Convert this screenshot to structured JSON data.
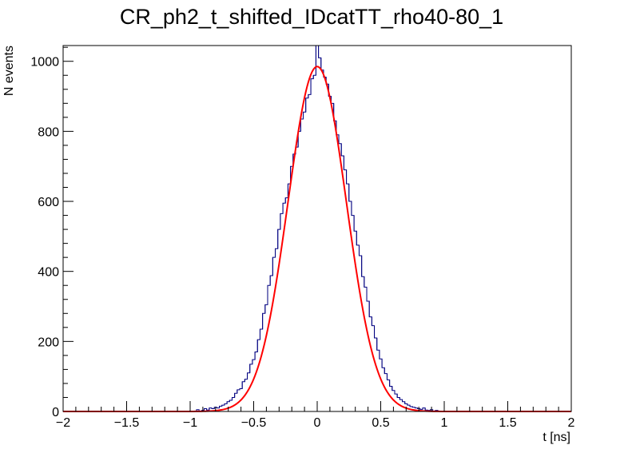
{
  "chart_data": {
    "type": "histogram",
    "title": "CR_ph2_t_shifted_IDcatTT_rho40-80_1",
    "xlabel": "t [ns]",
    "ylabel": "N events",
    "xlim": [
      -2,
      2
    ],
    "ylim": [
      0,
      1045
    ],
    "x_ticks": [
      "−2",
      "−1.5",
      "−1",
      "−0.5",
      "0",
      "0.5",
      "1",
      "1.5",
      "2"
    ],
    "y_ticks": [
      "0",
      "200",
      "400",
      "600",
      "800",
      "1000"
    ],
    "grid": false,
    "legend": "none",
    "series": [
      {
        "kind": "histogram",
        "color": "#000080",
        "bin_width": 0.02,
        "bins": [
          {
            "x": -0.94,
            "y": 5
          },
          {
            "x": -0.9,
            "y": 3
          },
          {
            "x": -0.88,
            "y": 8
          },
          {
            "x": -0.86,
            "y": 4
          },
          {
            "x": -0.84,
            "y": 10
          },
          {
            "x": -0.82,
            "y": 8
          },
          {
            "x": -0.8,
            "y": 12
          },
          {
            "x": -0.78,
            "y": 10
          },
          {
            "x": -0.76,
            "y": 15
          },
          {
            "x": -0.74,
            "y": 18
          },
          {
            "x": -0.72,
            "y": 22
          },
          {
            "x": -0.7,
            "y": 28
          },
          {
            "x": -0.68,
            "y": 32
          },
          {
            "x": -0.66,
            "y": 40
          },
          {
            "x": -0.64,
            "y": 52
          },
          {
            "x": -0.62,
            "y": 62
          },
          {
            "x": -0.6,
            "y": 65
          },
          {
            "x": -0.58,
            "y": 85
          },
          {
            "x": -0.56,
            "y": 92
          },
          {
            "x": -0.54,
            "y": 110
          },
          {
            "x": -0.52,
            "y": 135
          },
          {
            "x": -0.5,
            "y": 148
          },
          {
            "x": -0.48,
            "y": 170
          },
          {
            "x": -0.46,
            "y": 205
          },
          {
            "x": -0.44,
            "y": 235
          },
          {
            "x": -0.42,
            "y": 280
          },
          {
            "x": -0.4,
            "y": 305
          },
          {
            "x": -0.38,
            "y": 360
          },
          {
            "x": -0.36,
            "y": 388
          },
          {
            "x": -0.34,
            "y": 440
          },
          {
            "x": -0.32,
            "y": 465
          },
          {
            "x": -0.3,
            "y": 520
          },
          {
            "x": -0.28,
            "y": 565
          },
          {
            "x": -0.26,
            "y": 595
          },
          {
            "x": -0.24,
            "y": 610
          },
          {
            "x": -0.22,
            "y": 650
          },
          {
            "x": -0.2,
            "y": 700
          },
          {
            "x": -0.18,
            "y": 735
          },
          {
            "x": -0.16,
            "y": 755
          },
          {
            "x": -0.14,
            "y": 800
          },
          {
            "x": -0.12,
            "y": 835
          },
          {
            "x": -0.1,
            "y": 855
          },
          {
            "x": -0.08,
            "y": 895
          },
          {
            "x": -0.06,
            "y": 905
          },
          {
            "x": -0.04,
            "y": 950
          },
          {
            "x": -0.02,
            "y": 960
          },
          {
            "x": 0.0,
            "y": 1045
          },
          {
            "x": 0.02,
            "y": 1010
          },
          {
            "x": 0.04,
            "y": 975
          },
          {
            "x": 0.06,
            "y": 955
          },
          {
            "x": 0.08,
            "y": 935
          },
          {
            "x": 0.1,
            "y": 900
          },
          {
            "x": 0.12,
            "y": 880
          },
          {
            "x": 0.14,
            "y": 830
          },
          {
            "x": 0.16,
            "y": 790
          },
          {
            "x": 0.18,
            "y": 765
          },
          {
            "x": 0.2,
            "y": 730
          },
          {
            "x": 0.22,
            "y": 690
          },
          {
            "x": 0.24,
            "y": 650
          },
          {
            "x": 0.26,
            "y": 600
          },
          {
            "x": 0.28,
            "y": 560
          },
          {
            "x": 0.3,
            "y": 515
          },
          {
            "x": 0.32,
            "y": 475
          },
          {
            "x": 0.34,
            "y": 445
          },
          {
            "x": 0.36,
            "y": 385
          },
          {
            "x": 0.38,
            "y": 355
          },
          {
            "x": 0.4,
            "y": 315
          },
          {
            "x": 0.42,
            "y": 270
          },
          {
            "x": 0.44,
            "y": 245
          },
          {
            "x": 0.46,
            "y": 210
          },
          {
            "x": 0.48,
            "y": 175
          },
          {
            "x": 0.5,
            "y": 150
          },
          {
            "x": 0.52,
            "y": 125
          },
          {
            "x": 0.54,
            "y": 108
          },
          {
            "x": 0.56,
            "y": 90
          },
          {
            "x": 0.58,
            "y": 72
          },
          {
            "x": 0.6,
            "y": 60
          },
          {
            "x": 0.62,
            "y": 50
          },
          {
            "x": 0.64,
            "y": 40
          },
          {
            "x": 0.66,
            "y": 34
          },
          {
            "x": 0.68,
            "y": 28
          },
          {
            "x": 0.7,
            "y": 22
          },
          {
            "x": 0.72,
            "y": 18
          },
          {
            "x": 0.74,
            "y": 14
          },
          {
            "x": 0.76,
            "y": 12
          },
          {
            "x": 0.78,
            "y": 10
          },
          {
            "x": 0.8,
            "y": 8
          },
          {
            "x": 0.82,
            "y": 6
          },
          {
            "x": 0.84,
            "y": 10
          },
          {
            "x": 0.86,
            "y": 4
          },
          {
            "x": 0.88,
            "y": 3
          },
          {
            "x": 0.9,
            "y": 5
          },
          {
            "x": 0.94,
            "y": 3
          }
        ]
      },
      {
        "kind": "fit",
        "function": "gaus",
        "color": "#ff0000",
        "amplitude": 985,
        "mean": 0.0,
        "sigma": 0.23,
        "range": [
          -2,
          2
        ]
      }
    ]
  }
}
